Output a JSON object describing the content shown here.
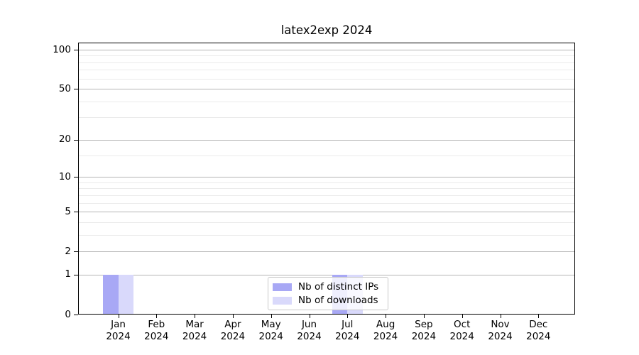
{
  "title": "latex2exp 2024",
  "chart_data": {
    "type": "bar",
    "title": "latex2exp 2024",
    "categories": [
      "Jan",
      "Feb",
      "Mar",
      "Apr",
      "May",
      "Jun",
      "Jul",
      "Aug",
      "Sep",
      "Oct",
      "Nov",
      "Dec"
    ],
    "year_label": "2024",
    "series": [
      {
        "name": "Nb of distinct IPs",
        "color": "#a8a8f5",
        "values": [
          1,
          0,
          0,
          0,
          0,
          0,
          1,
          0,
          0,
          0,
          0,
          0
        ]
      },
      {
        "name": "Nb of downloads",
        "color": "#d9d9fb",
        "values": [
          1,
          0,
          0,
          0,
          0,
          0,
          1,
          0,
          0,
          0,
          0,
          0
        ]
      }
    ],
    "y_axis": {
      "scale": "log1p",
      "major_ticks": [
        0,
        1,
        2,
        5,
        10,
        20,
        50,
        100
      ],
      "minor_gridlines": [
        3,
        4,
        6,
        7,
        8,
        9,
        15,
        30,
        40,
        60,
        70,
        80,
        90
      ],
      "range_top_value": 113
    },
    "x_axis": {
      "label_lines": 2
    },
    "legend": {
      "position": "lower center"
    },
    "grid": true,
    "colors": {
      "major_grid": "#b4b4b4",
      "minor_grid": "#ebebeb",
      "axis": "#000000",
      "background": "#ffffff"
    }
  }
}
